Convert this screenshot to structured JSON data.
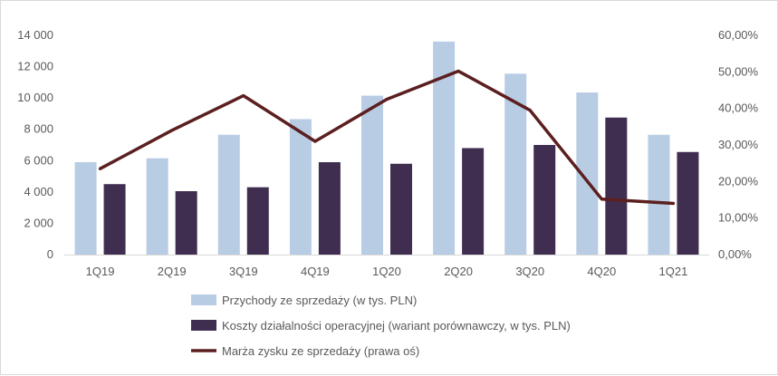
{
  "chart_data": {
    "type": "bar",
    "categories": [
      "1Q19",
      "2Q19",
      "3Q19",
      "4Q19",
      "1Q20",
      "2Q20",
      "3Q20",
      "4Q20",
      "1Q21"
    ],
    "series": [
      {
        "name": "Przychody ze sprzedaży (w tys. PLN)",
        "kind": "bar",
        "axis": "left",
        "color": "#b8cce4",
        "values": [
          5900,
          6150,
          7650,
          8650,
          10150,
          13600,
          11550,
          10350,
          7650
        ]
      },
      {
        "name": "Koszty działalności operacyjnej (wariant porównawczy, w tys. PLN)",
        "kind": "bar",
        "axis": "left",
        "color": "#3f2e4f",
        "values": [
          4500,
          4050,
          4300,
          5900,
          5800,
          6800,
          7000,
          8750,
          6550
        ]
      },
      {
        "name": "Marża zysku ze sprzedaży (prawa oś)",
        "kind": "line",
        "axis": "right",
        "color": "#5c1f1f",
        "values": [
          0.235,
          0.34,
          0.435,
          0.31,
          0.425,
          0.502,
          0.395,
          0.152,
          0.14
        ]
      }
    ],
    "y_left": {
      "range": [
        0,
        14000
      ],
      "ticks": [
        0,
        2000,
        4000,
        6000,
        8000,
        10000,
        12000,
        14000
      ],
      "tick_labels": [
        "0",
        "2 000",
        "4 000",
        "6 000",
        "8 000",
        "10 000",
        "12 000",
        "14 000"
      ]
    },
    "y_right": {
      "range": [
        0,
        0.6
      ],
      "ticks": [
        0,
        0.1,
        0.2,
        0.3,
        0.4,
        0.5,
        0.6
      ],
      "tick_labels": [
        "0,00%",
        "10,00%",
        "20,00%",
        "30,00%",
        "40,00%",
        "50,00%",
        "60,00%"
      ]
    },
    "grid": false,
    "legend_position": "bottom"
  }
}
